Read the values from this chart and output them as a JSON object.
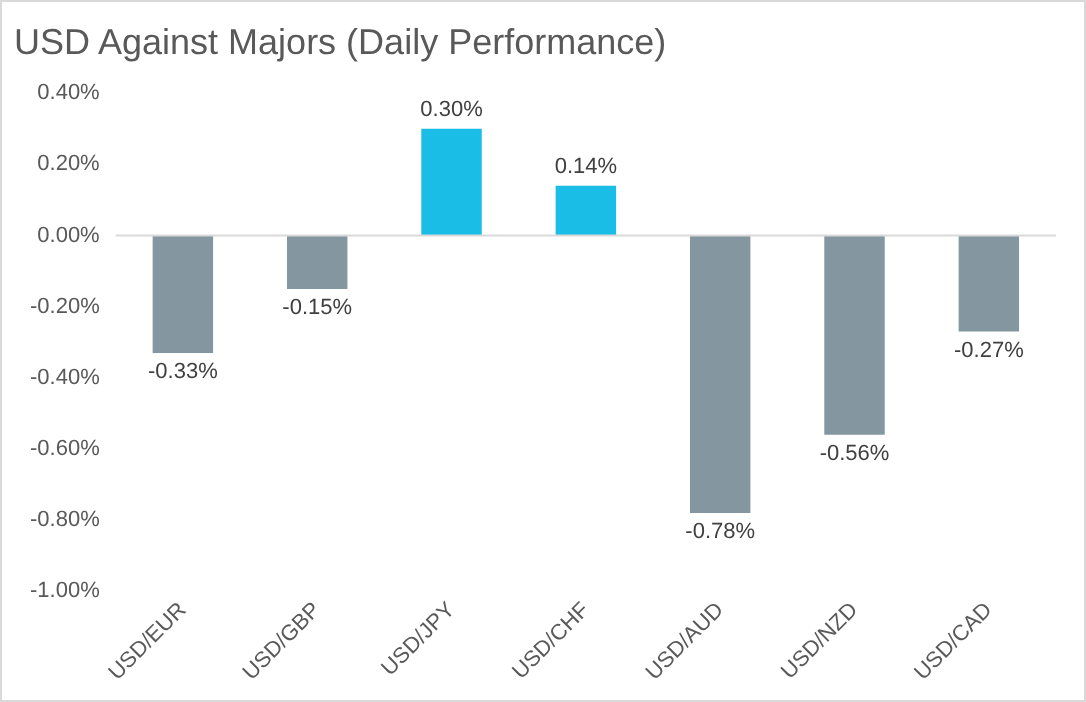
{
  "chart_data": {
    "type": "bar",
    "title": "USD Against Majors (Daily Performance)",
    "categories": [
      "USD/EUR",
      "USD/GBP",
      "USD/JPY",
      "USD/CHF",
      "USD/AUD",
      "USD/NZD",
      "USD/CAD"
    ],
    "values": [
      -0.33,
      -0.15,
      0.3,
      0.14,
      -0.78,
      -0.56,
      -0.27
    ],
    "colors": [
      "#8497a0",
      "#8497a0",
      "#19bde6",
      "#19bde6",
      "#8497a0",
      "#8497a0",
      "#8497a0"
    ],
    "value_labels": [
      "-0.33%",
      "-0.15%",
      "0.30%",
      "0.14%",
      "-0.78%",
      "-0.56%",
      "-0.27%"
    ],
    "ylim": [
      -1.0,
      0.4
    ],
    "yticks": [
      {
        "value": -1.0,
        "label": "-1.00%"
      },
      {
        "value": -0.8,
        "label": "-0.80%"
      },
      {
        "value": -0.6,
        "label": "-0.60%"
      },
      {
        "value": -0.4,
        "label": "-0.40%"
      },
      {
        "value": -0.2,
        "label": "-0.20%"
      },
      {
        "value": 0,
        "label": "0.00%"
      },
      {
        "value": 0.2,
        "label": "0.20%"
      },
      {
        "value": 0.4,
        "label": "0.40%"
      }
    ],
    "ref_lines": [
      {
        "axis": "y",
        "value": 0,
        "color": "#d9d9d9"
      }
    ],
    "grid": false,
    "legend": false
  }
}
